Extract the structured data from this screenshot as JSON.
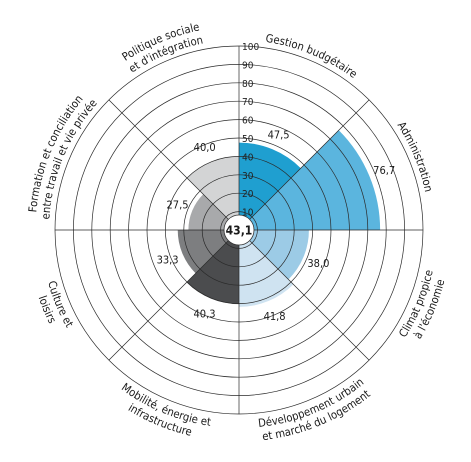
{
  "chart_data": {
    "type": "radial-bar",
    "rlim": [
      0,
      100
    ],
    "rticks": [
      "10",
      "20",
      "30",
      "40",
      "50",
      "60",
      "70",
      "80",
      "90",
      "100"
    ],
    "center_value": "43,1",
    "segments": [
      {
        "label_lines": [
          "Gestion budgétaire"
        ],
        "value": 47.5,
        "value_label": "47,5",
        "color": "#1f9fd0"
      },
      {
        "label_lines": [
          "Administration"
        ],
        "value": 76.7,
        "value_label": "76,7",
        "color": "#5bb5de"
      },
      {
        "label_lines": [
          "Climat propice",
          "à l'économie"
        ],
        "value": 38.0,
        "value_label": "38,0",
        "color": "#9ccbe6"
      },
      {
        "label_lines": [
          "Développement urbain",
          "et marché du logement"
        ],
        "value": 41.8,
        "value_label": "41,8",
        "color": "#cfe3f1"
      },
      {
        "label_lines": [
          "Mobilité, énergie et",
          "infrastructure"
        ],
        "value": 40.3,
        "value_label": "40,3",
        "color": "#4b4c4e"
      },
      {
        "label_lines": [
          "Culture et",
          "loisirs"
        ],
        "value": 33.3,
        "value_label": "33,3",
        "color": "#7d7e80"
      },
      {
        "label_lines": [
          "Formation et conciliation",
          "entre travail et vie privée"
        ],
        "value": 27.5,
        "value_label": "27,5",
        "color": "#a8a9ab"
      },
      {
        "label_lines": [
          "Politique sociale",
          "et d'intégration"
        ],
        "value": 40.0,
        "value_label": "40,0",
        "color": "#d3d4d5"
      }
    ],
    "grid": true,
    "legend": "none"
  }
}
